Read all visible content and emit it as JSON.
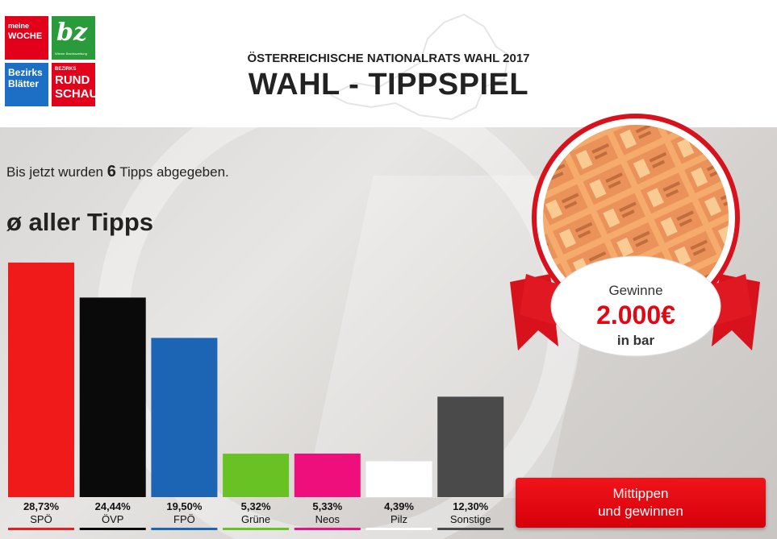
{
  "header": {
    "subtitle": "ÖSTERREICHISCHE NATIONALRATS WAHL 2017",
    "title": "WAHL - TIPPSPIEL"
  },
  "logos": {
    "meine_woche": [
      "meine",
      "WOCHE"
    ],
    "bz": [
      "bz",
      "Wiener Bezirkszeitung"
    ],
    "bezirksblaetter": [
      "Bezirks",
      "Blätter"
    ],
    "rundschau": [
      "BEZIRKS",
      "RUND",
      "SCHAU"
    ]
  },
  "stats": {
    "prefix": "Bis jetzt wurden ",
    "count": "6",
    "suffix": " Tipps abgegeben."
  },
  "average_heading": "ø aller Tipps",
  "prize": {
    "line1": "Gewinne",
    "amount": "2.000€",
    "line3": "in bar"
  },
  "cta": {
    "line1": "Mittippen",
    "line2": "und gewinnen"
  },
  "colors": {
    "SPÖ": "#f01a1a",
    "ÖVP": "#0a0a0a",
    "FPÖ": "#1c64b4",
    "Grüne": "#68c224",
    "Neos": "#ee0f7c",
    "Pilz": "#ffffff",
    "Sonstige": "#4a4a4a",
    "accent": "#e30613"
  },
  "chart_data": {
    "type": "bar",
    "categories": [
      "SPÖ",
      "ÖVP",
      "FPÖ",
      "Grüne",
      "Neos",
      "Pilz",
      "Sonstige"
    ],
    "values": [
      28.73,
      24.44,
      19.5,
      5.32,
      5.33,
      4.39,
      12.3
    ],
    "value_labels": [
      "28,73%",
      "24,44%",
      "19,50%",
      "5,32%",
      "5,33%",
      "4,39%",
      "12,30%"
    ],
    "ylim": [
      0,
      30
    ]
  }
}
